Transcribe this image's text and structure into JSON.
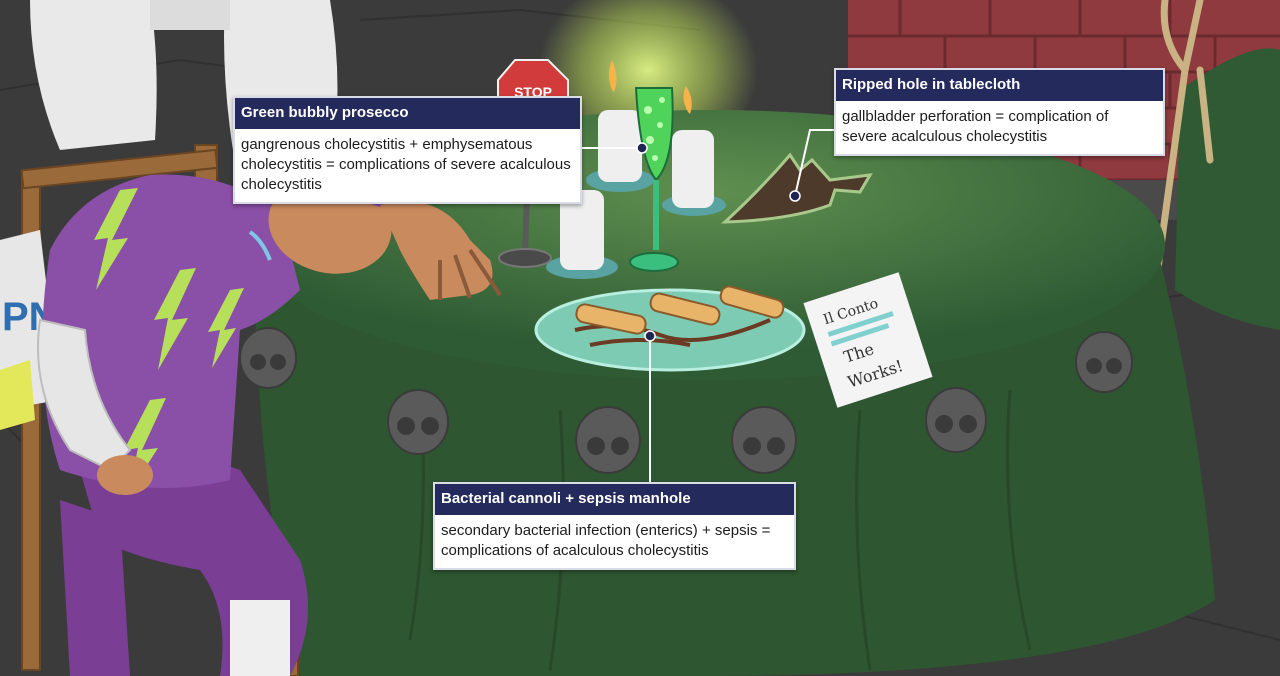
{
  "callouts": [
    {
      "id": "prosecco",
      "title": "Green bubbly prosecco",
      "body": "gangrenous cholecystitis + emphysematous cholecystitis = complications of severe acalculous cholecystitis"
    },
    {
      "id": "tablecloth",
      "title": "Ripped hole in tablecloth",
      "body": "gallbladder perforation = complication of severe acalculous cholecystitis"
    },
    {
      "id": "cannoli",
      "title": "Bacterial cannoli + sepsis manhole",
      "body": "secondary bacterial infection (enterics) + sepsis = complications of acalculous cholecystitis"
    }
  ],
  "scene": {
    "stop_sign": "STOP",
    "menu_line1": "Il Conto",
    "menu_line2": "The",
    "menu_line3": "Works!",
    "jersey_fragment": "PN"
  },
  "colors": {
    "callout_header": "#242a5c",
    "tablecloth": "#2f5b33",
    "jersey": "#8a4fa6",
    "prosecco": "#4fd35a",
    "brick": "#8e3a3e"
  }
}
